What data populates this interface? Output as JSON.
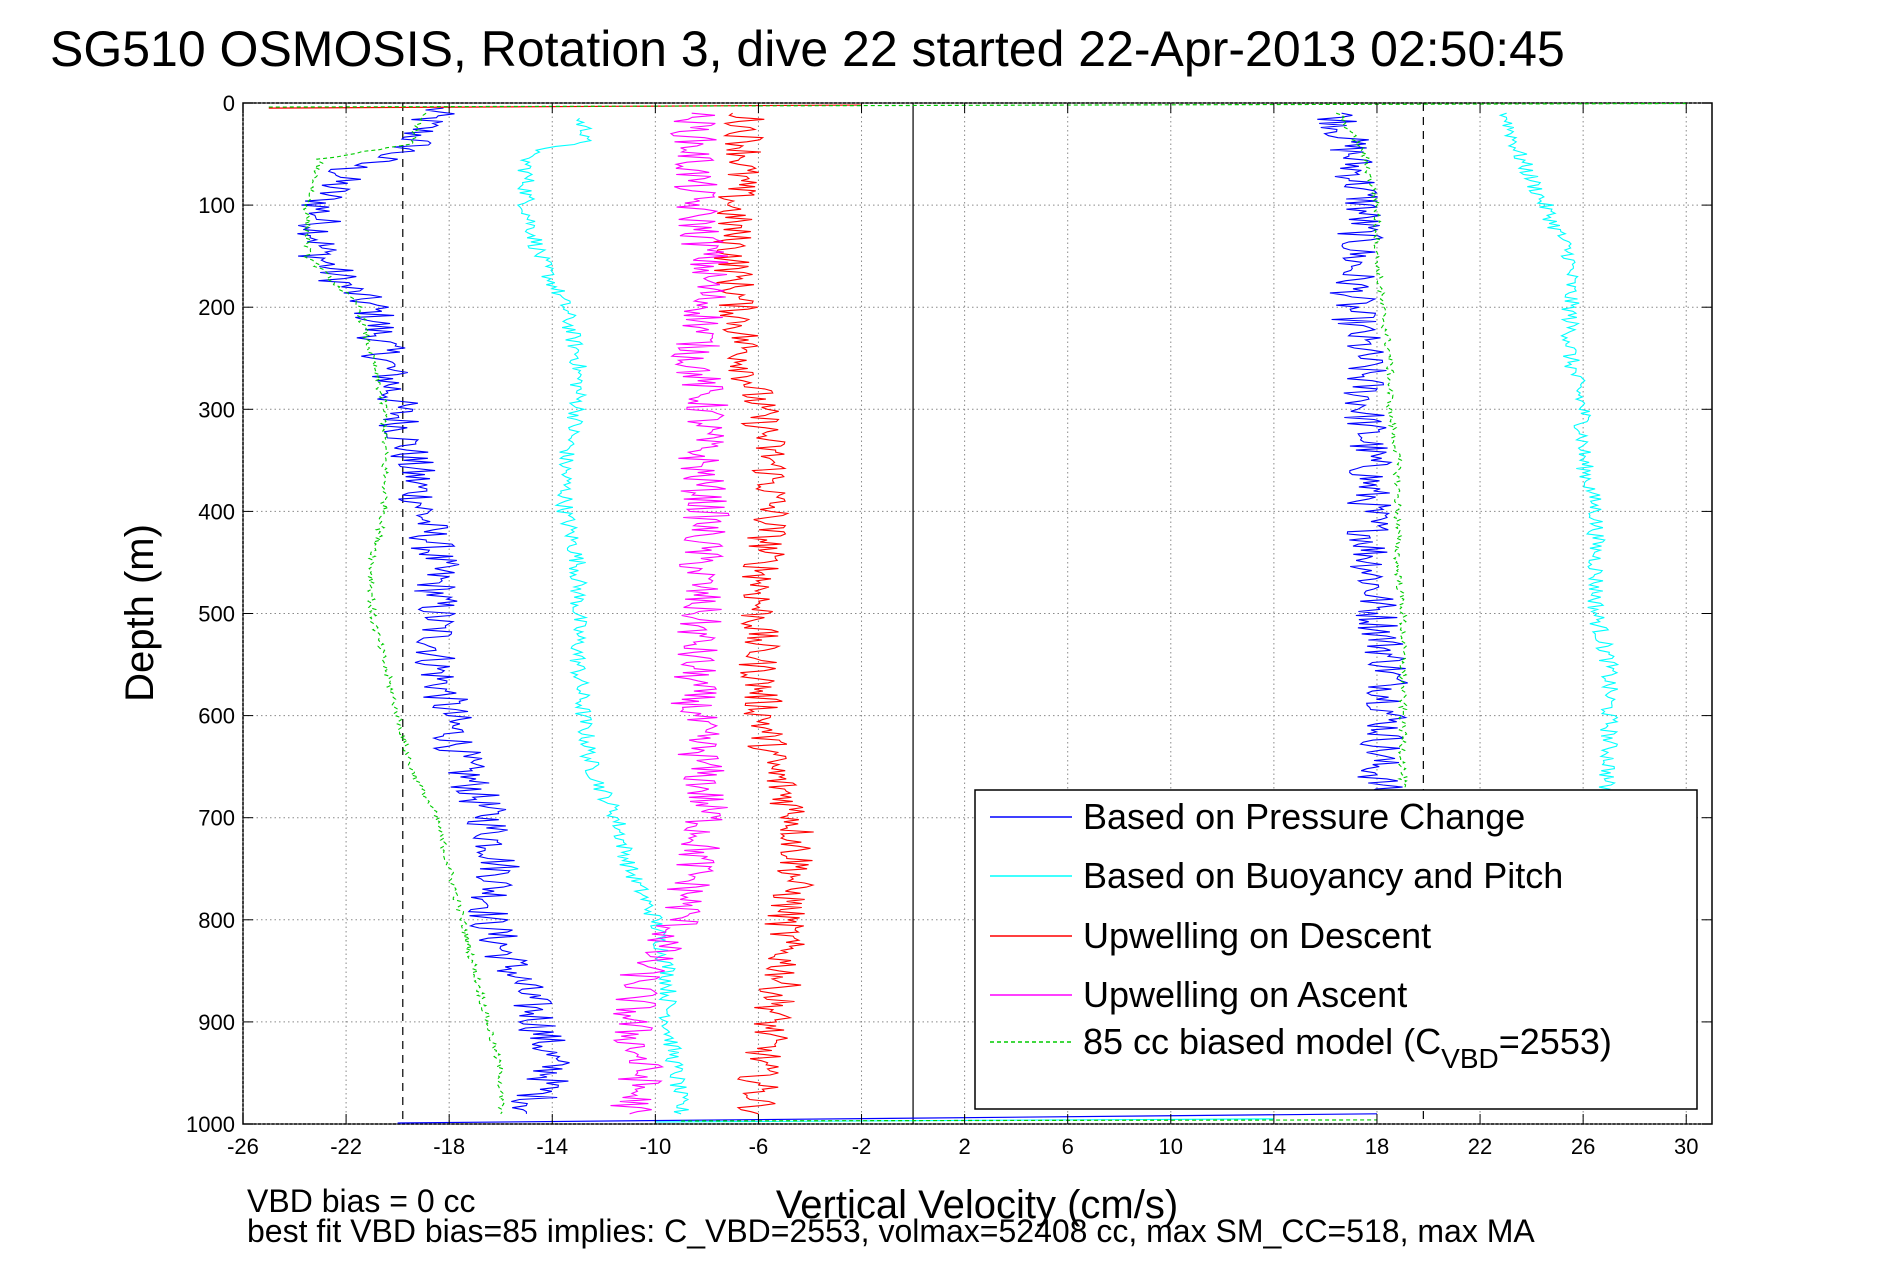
{
  "chart_data": {
    "type": "line",
    "title": "SG510 OSMOSIS, Rotation 3, dive 22 started 22-Apr-2013 02:50:45",
    "xlabel": "Vertical Velocity (cm/s)",
    "ylabel": "Depth (m)",
    "xlim": [
      -26,
      31
    ],
    "ylim": [
      1000,
      0
    ],
    "x_ticks": [
      "-26",
      "-22",
      "-18",
      "-14",
      "-10",
      "-6",
      "-2",
      "2",
      "6",
      "10",
      "14",
      "18",
      "22",
      "26",
      "30"
    ],
    "y_ticks": [
      "0",
      "100",
      "200",
      "300",
      "400",
      "500",
      "600",
      "700",
      "800",
      "900",
      "1000"
    ],
    "grid": true,
    "legend_position": "bottom-right",
    "footer_lines": [
      "VBD bias = 0 cc",
      "best fit VBD bias=85 implies: C_VBD=2553, volmax=52408 cc, max SM_CC=518, max MA"
    ],
    "reference_lines": {
      "zero_line_x": 0,
      "dashed_x": [
        -19.8,
        19.8
      ]
    },
    "series": [
      {
        "name": "Based on Pressure Change",
        "color": "#0000ff",
        "style": "solid",
        "noise": 0.9,
        "points": [
          [
            [
              -18.5,
              5
            ],
            [
              -19,
              20
            ],
            [
              -19.5,
              45
            ],
            [
              -22,
              65
            ],
            [
              -23,
              100
            ],
            [
              -23,
              150
            ],
            [
              -22,
              180
            ],
            [
              -21,
              200
            ],
            [
              -20.5,
              250
            ],
            [
              -20,
              300
            ],
            [
              -19.5,
              350
            ],
            [
              -19,
              400
            ],
            [
              -18.5,
              450
            ],
            [
              -18.5,
              500
            ],
            [
              -18.5,
              550
            ],
            [
              -18,
              600
            ],
            [
              -17.5,
              650
            ],
            [
              -16.5,
              700
            ],
            [
              -16,
              750
            ],
            [
              -16.5,
              800
            ],
            [
              -15.5,
              850
            ],
            [
              -14.5,
              900
            ],
            [
              -14,
              950
            ],
            [
              -15,
              990
            ]
          ],
          [
            [
              16.5,
              10
            ],
            [
              17,
              50
            ],
            [
              17.5,
              100
            ],
            [
              17.2,
              150
            ],
            [
              17,
              200
            ],
            [
              17.5,
              250
            ],
            [
              17.5,
              300
            ],
            [
              17.7,
              350
            ],
            [
              17.7,
              400
            ],
            [
              17.8,
              450
            ],
            [
              18,
              500
            ],
            [
              18.5,
              550
            ],
            [
              18.5,
              600
            ],
            [
              18,
              650
            ],
            [
              18.2,
              680
            ]
          ]
        ]
      },
      {
        "name": "Based on Buoyancy and Pitch",
        "color": "#00ffff",
        "style": "solid",
        "noise": 0.35,
        "points": [
          [
            [
              -13,
              15
            ],
            [
              -12.5,
              35
            ],
            [
              -15,
              50
            ],
            [
              -15,
              100
            ],
            [
              -14.5,
              150
            ],
            [
              -13.5,
              200
            ],
            [
              -13,
              250
            ],
            [
              -13,
              300
            ],
            [
              -13.5,
              350
            ],
            [
              -13.5,
              400
            ],
            [
              -13,
              450
            ],
            [
              -13,
              500
            ],
            [
              -13,
              550
            ],
            [
              -12.8,
              600
            ],
            [
              -12.5,
              650
            ],
            [
              -11.5,
              700
            ],
            [
              -11,
              750
            ],
            [
              -10,
              800
            ],
            [
              -9.5,
              850
            ],
            [
              -9.5,
              900
            ],
            [
              -9.2,
              950
            ],
            [
              -9,
              990
            ]
          ],
          [
            [
              23,
              10
            ],
            [
              23.5,
              50
            ],
            [
              24.5,
              100
            ],
            [
              25.5,
              150
            ],
            [
              25.5,
              200
            ],
            [
              25.5,
              250
            ],
            [
              26,
              300
            ],
            [
              26,
              350
            ],
            [
              26.5,
              400
            ],
            [
              26.5,
              450
            ],
            [
              26.5,
              500
            ],
            [
              27,
              550
            ],
            [
              27,
              600
            ],
            [
              27,
              650
            ],
            [
              26.8,
              680
            ]
          ]
        ]
      },
      {
        "name": "Upwelling on Descent",
        "color": "#ff0000",
        "style": "solid",
        "noise": 0.8,
        "points": [
          [
            [
              -6.5,
              10
            ],
            [
              -6.5,
              50
            ],
            [
              -7,
              100
            ],
            [
              -7,
              150
            ],
            [
              -6.8,
              200
            ],
            [
              -6.5,
              250
            ],
            [
              -6,
              300
            ],
            [
              -5.5,
              350
            ],
            [
              -5.5,
              400
            ],
            [
              -5.8,
              450
            ],
            [
              -6,
              500
            ],
            [
              -6,
              550
            ],
            [
              -5.8,
              600
            ],
            [
              -5.5,
              650
            ],
            [
              -4.5,
              700
            ],
            [
              -4.5,
              750
            ],
            [
              -5,
              800
            ],
            [
              -5,
              850
            ],
            [
              -5.5,
              900
            ],
            [
              -6,
              950
            ],
            [
              -6,
              990
            ]
          ]
        ]
      },
      {
        "name": "Upwelling on Ascent",
        "color": "#ff00ff",
        "style": "solid",
        "noise": 0.9,
        "points": [
          [
            [
              -8.5,
              10
            ],
            [
              -8.5,
              50
            ],
            [
              -8.5,
              100
            ],
            [
              -8,
              150
            ],
            [
              -8,
              200
            ],
            [
              -8.5,
              250
            ],
            [
              -8,
              300
            ],
            [
              -8.3,
              350
            ],
            [
              -8,
              400
            ],
            [
              -8.3,
              450
            ],
            [
              -8.3,
              500
            ],
            [
              -8.5,
              550
            ],
            [
              -8.5,
              600
            ],
            [
              -8.2,
              650
            ],
            [
              -8,
              700
            ],
            [
              -8.5,
              750
            ],
            [
              -9,
              800
            ],
            [
              -10.5,
              850
            ],
            [
              -11,
              900
            ],
            [
              -10.5,
              950
            ],
            [
              -11,
              990
            ]
          ]
        ]
      },
      {
        "name": "85 cc biased model (C_VBD=2553)",
        "color": "#00cc00",
        "style": "dashed",
        "noise": 0.15,
        "points": [
          [
            [
              -19,
              10
            ],
            [
              -19.5,
              40
            ],
            [
              -23,
              55
            ],
            [
              -23.5,
              100
            ],
            [
              -23.5,
              150
            ],
            [
              -21.5,
              200
            ],
            [
              -21,
              250
            ],
            [
              -20.5,
              300
            ],
            [
              -20.5,
              350
            ],
            [
              -20.5,
              400
            ],
            [
              -21,
              450
            ],
            [
              -21,
              500
            ],
            [
              -20.5,
              550
            ],
            [
              -20,
              600
            ],
            [
              -19.5,
              650
            ],
            [
              -18.5,
              700
            ],
            [
              -18,
              750
            ],
            [
              -17.5,
              800
            ],
            [
              -17,
              850
            ],
            [
              -16.5,
              900
            ],
            [
              -16,
              950
            ],
            [
              -16,
              990
            ]
          ],
          [
            [
              16.5,
              10
            ],
            [
              17.5,
              50
            ],
            [
              18,
              100
            ],
            [
              18,
              150
            ],
            [
              18.2,
              200
            ],
            [
              18.5,
              250
            ],
            [
              18.5,
              300
            ],
            [
              18.8,
              350
            ],
            [
              18.8,
              400
            ],
            [
              18.8,
              450
            ],
            [
              19,
              500
            ],
            [
              19,
              550
            ],
            [
              19,
              600
            ],
            [
              19,
              650
            ],
            [
              19,
              680
            ]
          ]
        ]
      }
    ],
    "legend_entries": [
      {
        "label": "Based on Pressure Change",
        "color": "#0000ff",
        "dashed": false
      },
      {
        "label": "Based on Buoyancy and Pitch",
        "color": "#00ffff",
        "dashed": false
      },
      {
        "label": "Upwelling on Descent",
        "color": "#ff0000",
        "dashed": false
      },
      {
        "label": "Upwelling on Ascent",
        "color": "#ff00ff",
        "dashed": false
      },
      {
        "label_main": "85 cc biased model (C",
        "label_sub": "VBD",
        "label_tail": "=2553)",
        "color": "#00cc00",
        "dashed": true
      }
    ]
  }
}
